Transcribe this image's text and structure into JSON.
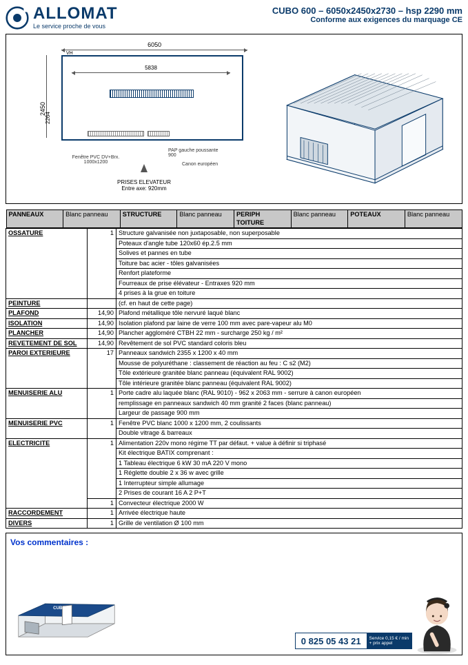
{
  "brand": {
    "name": "ALLOMAT",
    "tagline": "Le service proche de vous",
    "logo_color": "#0a3a6a"
  },
  "title": {
    "line1": "CUBO 600 – 6050x2450x2730 – hsp 2290 mm",
    "line2": "Conforme aux exigences du marquage CE"
  },
  "plan": {
    "dim_6050": "6050",
    "dim_5838": "5838",
    "dim_2450": "2450",
    "dim_2264": "2264",
    "vh": "VH",
    "fenetre": "Fenêtre PVC DV+Brx.\n1000x1200",
    "pap": "PAP gauche poussante\n900",
    "canon": "Canon européen",
    "prises_title": "PRISES ELEVATEUR",
    "prises_sub": "Entre axe: 920mm"
  },
  "header_row": {
    "c1": "PANNEAUX",
    "c2": "Blanc panneau",
    "c3": "STRUCTURE",
    "c4": "Blanc panneau",
    "c5": "PERIPH TOITURE",
    "c6": "Blanc panneau",
    "c7": "POTEAUX",
    "c8": "Blanc panneau"
  },
  "specs": [
    {
      "label": "OSSATURE",
      "qty": "1",
      "desc": "Structure galvanisée non juxtaposable, non superposable\nPoteaux d'angle tube 120x60 ép.2.5 mm\nSolives et pannes en tube\nToiture bac acier - tôles galvanisées\nRenfort plateforme\nFourreaux de prise élévateur - Entraxes 920 mm\n4 prises à la grue en toiture"
    },
    {
      "label": "PEINTURE",
      "qty": "",
      "desc": "(cf. en haut de cette page)"
    },
    {
      "label": "PLAFOND",
      "qty": "14,90",
      "desc": "Plafond métallique tôle nervuré laqué blanc"
    },
    {
      "label": "ISOLATION",
      "qty": "14,90",
      "desc": "Isolation plafond par laine de verre 100 mm avec pare-vapeur alu  M0"
    },
    {
      "label": "PLANCHER",
      "qty": "14,90",
      "desc": "Plancher aggloméré CTBH 22 mm -  surcharge 250 kg / m²"
    },
    {
      "label": "REVETEMENT DE SOL",
      "qty": "14,90",
      "desc": "Revêtement de sol PVC standard coloris bleu"
    },
    {
      "label": "PAROI EXTERIEURE",
      "qty": "17",
      "desc": "Panneaux sandwich  2355 x 1200 x 40 mm\nMousse de polyuréthane : classement de réaction au feu : C s2 (M2)\nTôle extérieure granitée blanc panneau (équivalent RAL 9002)\nTôle intérieure granitée blanc panneau (équivalent RAL 9002)"
    },
    {
      "label": "MENUISERIE  ALU",
      "qty": "1",
      "desc": "Porte cadre alu laquée blanc (RAL 9010) - 962 x 2063 mm - serrure à canon européen\nremplissage en panneaux sandwich 40 mm granité 2 faces (blanc panneau)\nLargeur de passage 900 mm"
    },
    {
      "label": "MENUISERIE PVC",
      "qty": "1",
      "desc": "Fenêtre PVC blanc 1000 x 1200 mm, 2 coulissants\nDouble vitrage & barreaux"
    },
    {
      "label": "ELECTRICITE",
      "qty": "1",
      "desc": "Alimentation 220v mono régime TT par défaut. + value à définir si triphasé\nKit électrique BATIX comprenant :\n1 Tableau électrique 6 kW 30 mA 220 V mono\n1 Réglette double 2 x 36 w avec grille\n1 Interrupteur simple allumage\n2 Prises de courant 16 A 2 P+T",
      "extra_qty": "1",
      "extra_desc": "Convecteur électrique 2000 W"
    },
    {
      "label": "RACCORDEMENT",
      "qty": "1",
      "desc": "Arrivée électrique haute"
    },
    {
      "label": "DIVERS",
      "qty": "1",
      "desc": "Grille de ventilation Ø 100 mm"
    }
  ],
  "comments": {
    "title": "Vos commentaires :",
    "phone": "0 825 05 43 21",
    "rate1": "Service 0,15 € / min",
    "rate2": "+ prix appel"
  },
  "colors": {
    "brand": "#0a3a6a",
    "header_bg": "#c8c8c8",
    "link_blue": "#0033cc"
  }
}
